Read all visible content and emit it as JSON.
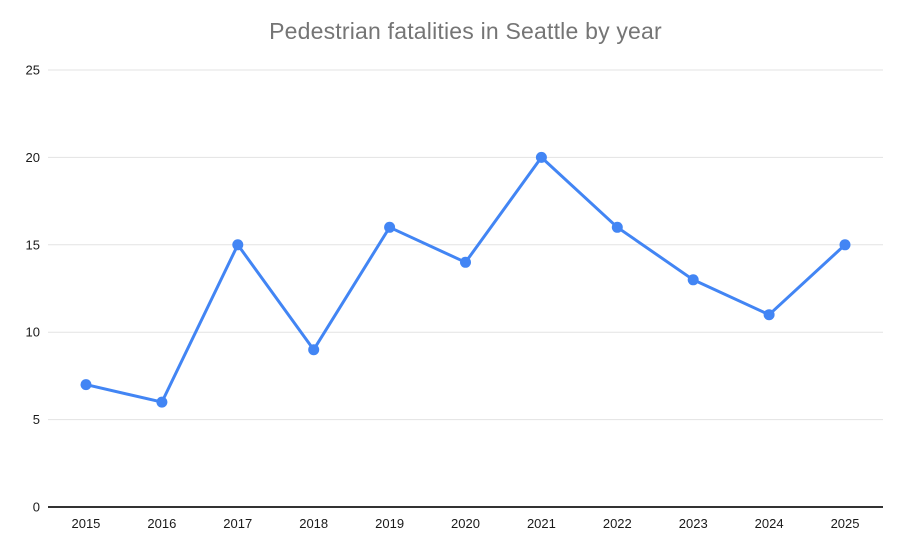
{
  "chart_data": {
    "type": "line",
    "title": "Pedestrian fatalities in Seattle by year",
    "categories": [
      "2015",
      "2016",
      "2017",
      "2018",
      "2019",
      "2020",
      "2021",
      "2022",
      "2023",
      "2024",
      "2025"
    ],
    "series": [
      {
        "name": "Pedestrian fatalities",
        "values": [
          7,
          6,
          15,
          9,
          16,
          14,
          20,
          16,
          13,
          11,
          15
        ]
      }
    ],
    "xlabel": "",
    "ylabel": "",
    "ylim": [
      0,
      25
    ],
    "yticks": [
      0,
      5,
      10,
      15,
      20,
      25
    ],
    "grid": "horizontal",
    "legend_position": "none",
    "colors": {
      "line": "#4285f4",
      "marker": "#4285f4",
      "gridline": "#e3e3e3",
      "axis": "#333333",
      "title_text": "#757575",
      "tick_text": "#1a1a1a",
      "background": "#ffffff"
    }
  }
}
